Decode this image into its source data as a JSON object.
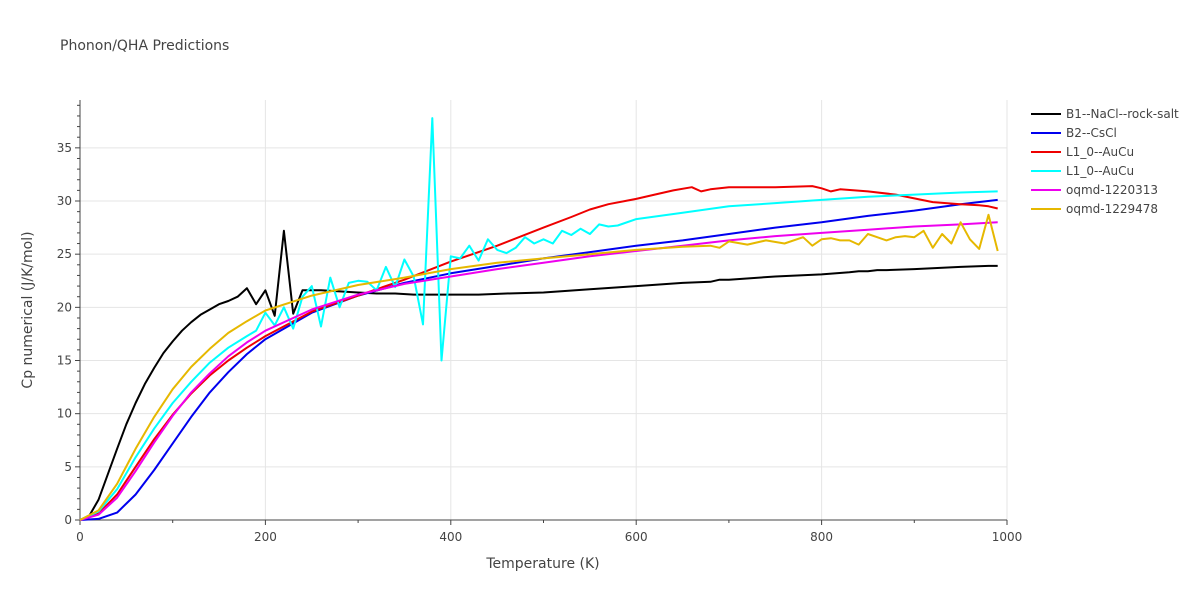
{
  "chart_data": {
    "type": "line",
    "title": "Phonon/QHA Predictions",
    "xlabel": "Temperature (K)",
    "ylabel": "Cp numerical (J/K/mol)",
    "xlim": [
      0,
      1000
    ],
    "ylim": [
      0,
      39.5
    ],
    "x_ticks": [
      0,
      200,
      400,
      600,
      800,
      1000
    ],
    "y_ticks": [
      0,
      5,
      10,
      15,
      20,
      25,
      30,
      35
    ],
    "grid": true,
    "legend_position": "right",
    "series": [
      {
        "name": "B1--NaCl--rock-salt",
        "color": "#000000",
        "x": [
          0,
          10,
          20,
          30,
          40,
          50,
          60,
          70,
          80,
          90,
          100,
          110,
          120,
          130,
          140,
          150,
          160,
          170,
          180,
          190,
          200,
          210,
          220,
          230,
          240,
          250,
          260,
          280,
          300,
          320,
          340,
          360,
          380,
          400,
          430,
          460,
          500,
          550,
          600,
          650,
          680,
          690,
          700,
          750,
          800,
          830,
          840,
          850,
          860,
          870,
          900,
          950,
          980,
          990
        ],
        "y": [
          0,
          0.4,
          1.9,
          4.3,
          6.7,
          9.0,
          11.0,
          12.8,
          14.3,
          15.7,
          16.8,
          17.8,
          18.6,
          19.3,
          19.8,
          20.3,
          20.6,
          21.0,
          21.8,
          20.3,
          21.6,
          19.2,
          27.2,
          19.4,
          21.6,
          21.6,
          21.6,
          21.5,
          21.4,
          21.3,
          21.3,
          21.2,
          21.2,
          21.2,
          21.2,
          21.3,
          21.4,
          21.7,
          22.0,
          22.3,
          22.4,
          22.6,
          22.6,
          22.9,
          23.1,
          23.3,
          23.4,
          23.4,
          23.5,
          23.5,
          23.6,
          23.8,
          23.9,
          23.9
        ]
      },
      {
        "name": "B2--CsCl",
        "color": "#0000ee",
        "x": [
          0,
          20,
          40,
          60,
          80,
          100,
          120,
          140,
          160,
          180,
          200,
          250,
          300,
          350,
          400,
          450,
          500,
          550,
          600,
          650,
          700,
          750,
          800,
          850,
          900,
          950,
          990
        ],
        "y": [
          0,
          0.1,
          0.7,
          2.4,
          4.7,
          7.2,
          9.7,
          12.0,
          13.9,
          15.6,
          17.0,
          19.5,
          21.1,
          22.3,
          23.2,
          23.9,
          24.6,
          25.2,
          25.8,
          26.3,
          26.9,
          27.5,
          28.0,
          28.6,
          29.1,
          29.7,
          30.1
        ]
      },
      {
        "name": "L1_0--AuCu",
        "color": "#ee0000",
        "x": [
          0,
          20,
          40,
          60,
          80,
          100,
          120,
          140,
          160,
          180,
          200,
          250,
          300,
          350,
          400,
          450,
          500,
          530,
          550,
          570,
          600,
          620,
          640,
          660,
          670,
          680,
          700,
          750,
          790,
          800,
          810,
          820,
          850,
          880,
          920,
          950,
          970,
          980,
          990
        ],
        "y": [
          0,
          0.6,
          2.4,
          5.0,
          7.6,
          9.9,
          11.9,
          13.6,
          15.0,
          16.2,
          17.3,
          19.6,
          21.1,
          22.6,
          24.3,
          25.8,
          27.5,
          28.5,
          29.2,
          29.7,
          30.2,
          30.6,
          31.0,
          31.3,
          30.9,
          31.1,
          31.3,
          31.3,
          31.4,
          31.2,
          30.9,
          31.1,
          30.9,
          30.6,
          29.9,
          29.7,
          29.6,
          29.5,
          29.3
        ]
      },
      {
        "name": "L1_0--AuCu",
        "color": "#00ffff",
        "x": [
          0,
          20,
          40,
          60,
          80,
          100,
          120,
          140,
          160,
          180,
          190,
          200,
          210,
          220,
          230,
          240,
          250,
          260,
          270,
          280,
          290,
          300,
          310,
          320,
          330,
          340,
          350,
          360,
          370,
          380,
          390,
          400,
          410,
          420,
          430,
          440,
          450,
          460,
          470,
          480,
          490,
          500,
          510,
          520,
          530,
          540,
          550,
          560,
          570,
          580,
          600,
          650,
          700,
          750,
          800,
          850,
          900,
          950,
          990
        ],
        "y": [
          0,
          0.8,
          2.9,
          5.9,
          8.6,
          11.0,
          13.0,
          14.8,
          16.2,
          17.3,
          17.8,
          19.5,
          18.3,
          20.0,
          18.0,
          21.0,
          22.0,
          18.2,
          22.8,
          20.0,
          22.3,
          22.5,
          22.4,
          21.6,
          23.8,
          21.9,
          24.5,
          22.9,
          18.4,
          37.8,
          15.0,
          24.8,
          24.6,
          25.8,
          24.4,
          26.4,
          25.4,
          25.1,
          25.6,
          26.6,
          26.0,
          26.4,
          26.0,
          27.2,
          26.8,
          27.4,
          26.9,
          27.8,
          27.6,
          27.7,
          28.3,
          28.9,
          29.5,
          29.8,
          30.1,
          30.4,
          30.6,
          30.8,
          30.9
        ]
      },
      {
        "name": "oqmd-1220313",
        "color": "#ee00ee",
        "x": [
          0,
          20,
          40,
          60,
          80,
          100,
          120,
          140,
          160,
          180,
          200,
          250,
          300,
          350,
          400,
          450,
          500,
          550,
          600,
          650,
          700,
          750,
          800,
          850,
          900,
          950,
          990
        ],
        "y": [
          0,
          0.5,
          2.1,
          4.6,
          7.3,
          9.8,
          12.0,
          13.8,
          15.4,
          16.7,
          17.8,
          19.8,
          21.2,
          22.2,
          22.9,
          23.6,
          24.2,
          24.8,
          25.3,
          25.8,
          26.3,
          26.7,
          27.0,
          27.3,
          27.6,
          27.8,
          28.0
        ]
      },
      {
        "name": "oqmd-1229478",
        "color": "#e6b800",
        "x": [
          0,
          20,
          40,
          60,
          80,
          100,
          120,
          140,
          160,
          180,
          200,
          250,
          300,
          350,
          400,
          450,
          500,
          550,
          600,
          650,
          680,
          690,
          700,
          720,
          740,
          760,
          780,
          790,
          800,
          810,
          820,
          830,
          840,
          850,
          860,
          870,
          880,
          890,
          900,
          910,
          920,
          930,
          940,
          950,
          960,
          970,
          980,
          990
        ],
        "y": [
          0,
          0.9,
          3.4,
          6.7,
          9.7,
          12.3,
          14.4,
          16.1,
          17.6,
          18.7,
          19.7,
          21.1,
          22.1,
          22.8,
          23.6,
          24.2,
          24.6,
          25.0,
          25.4,
          25.7,
          25.8,
          25.6,
          26.2,
          25.9,
          26.3,
          26.0,
          26.6,
          25.8,
          26.4,
          26.5,
          26.3,
          26.3,
          25.9,
          26.9,
          26.6,
          26.3,
          26.6,
          26.7,
          26.6,
          27.2,
          25.6,
          26.9,
          26.0,
          28.0,
          26.4,
          25.5,
          28.7,
          25.3
        ]
      }
    ]
  }
}
